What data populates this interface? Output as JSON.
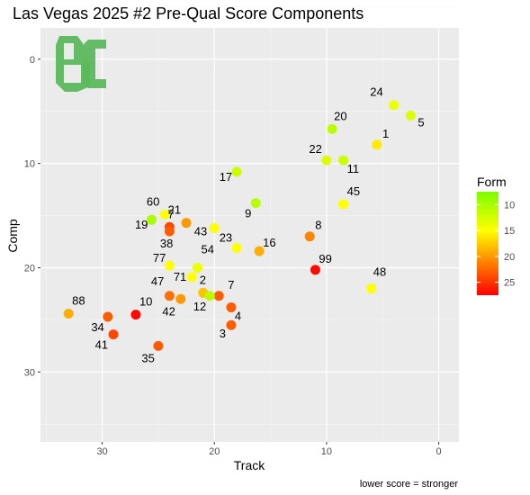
{
  "chart_data": {
    "type": "scatter",
    "title": "Las Vegas 2025 #2 Pre-Qual Score Components",
    "xlabel": "Track",
    "ylabel": "Comp",
    "caption": "lower score = stronger",
    "x_reversed": true,
    "y_reversed": true,
    "xlim": [
      35.5,
      -1.8
    ],
    "ylim": [
      -3.0,
      36.7
    ],
    "x_ticks": [
      30,
      20,
      10,
      0
    ],
    "y_ticks": [
      0,
      10,
      20,
      30
    ],
    "grid": true,
    "legend": {
      "title": "Form",
      "position": "right",
      "ticks": [
        10,
        15,
        20,
        25
      ],
      "range": [
        7.5,
        27.5
      ],
      "low_color": "#7cfc00",
      "mid_color": "#ffff00",
      "high_color": "#ff0000"
    },
    "logo": {
      "text": "BC",
      "color": "#5cb85c"
    },
    "points": [
      {
        "label": "24",
        "x": 4.0,
        "y": 4.4,
        "form": 14
      },
      {
        "label": "5",
        "x": 2.5,
        "y": 5.4,
        "form": 13
      },
      {
        "label": "20",
        "x": 9.5,
        "y": 6.7,
        "form": 11
      },
      {
        "label": "1",
        "x": 5.5,
        "y": 8.2,
        "form": 16
      },
      {
        "label": "22",
        "x": 10.0,
        "y": 9.7,
        "form": 13
      },
      {
        "label": "11",
        "x": 8.5,
        "y": 9.7,
        "form": 12
      },
      {
        "label": "17",
        "x": 18.0,
        "y": 10.8,
        "form": 12
      },
      {
        "label": "45",
        "x": 8.5,
        "y": 13.9,
        "form": 15
      },
      {
        "label": "9",
        "x": 16.3,
        "y": 13.8,
        "form": 11
      },
      {
        "label": "60",
        "x": 24.4,
        "y": 14.9,
        "form": 15
      },
      {
        "label": "19",
        "x": 25.6,
        "y": 15.4,
        "form": 10
      },
      {
        "label": "21",
        "x": 22.5,
        "y": 15.7,
        "form": 20
      },
      {
        "label": "7",
        "x": 24.0,
        "y": 16.1,
        "form": 24
      },
      {
        "label": "38",
        "x": 24.0,
        "y": 16.5,
        "form": 23
      },
      {
        "label": "43",
        "x": 20.0,
        "y": 16.2,
        "form": 15
      },
      {
        "label": "8",
        "x": 11.5,
        "y": 17.0,
        "form": 21
      },
      {
        "label": "23",
        "x": 18.0,
        "y": 18.1,
        "form": 15
      },
      {
        "label": "16",
        "x": 16.0,
        "y": 18.4,
        "form": 19
      },
      {
        "label": "77",
        "x": 24.0,
        "y": 19.8,
        "form": 15
      },
      {
        "label": "54",
        "x": 21.5,
        "y": 20.0,
        "form": 14
      },
      {
        "label": "99",
        "x": 11.0,
        "y": 20.2,
        "form": 27
      },
      {
        "label": "71",
        "x": 22.0,
        "y": 20.9,
        "form": 15
      },
      {
        "label": "48",
        "x": 6.0,
        "y": 22.0,
        "form": 15
      },
      {
        "label": "2",
        "x": 21.0,
        "y": 22.4,
        "form": 18
      },
      {
        "label": "7",
        "x": 19.6,
        "y": 22.7,
        "form": 23
      },
      {
        "label": "47",
        "x": 24.0,
        "y": 22.7,
        "form": 22
      },
      {
        "label": "12",
        "x": 20.4,
        "y": 22.7,
        "form": 11
      },
      {
        "label": "42",
        "x": 23.0,
        "y": 23.0,
        "form": 20
      },
      {
        "label": "88",
        "x": 33.0,
        "y": 24.4,
        "form": 19
      },
      {
        "label": "10",
        "x": 27.0,
        "y": 24.5,
        "form": 27
      },
      {
        "label": "34",
        "x": 29.5,
        "y": 24.7,
        "form": 23
      },
      {
        "label": "4",
        "x": 18.5,
        "y": 23.8,
        "form": 23
      },
      {
        "label": "3",
        "x": 18.5,
        "y": 25.5,
        "form": 23
      },
      {
        "label": "41",
        "x": 29.0,
        "y": 26.4,
        "form": 24
      },
      {
        "label": "35",
        "x": 25.0,
        "y": 27.5,
        "form": 23
      }
    ]
  }
}
